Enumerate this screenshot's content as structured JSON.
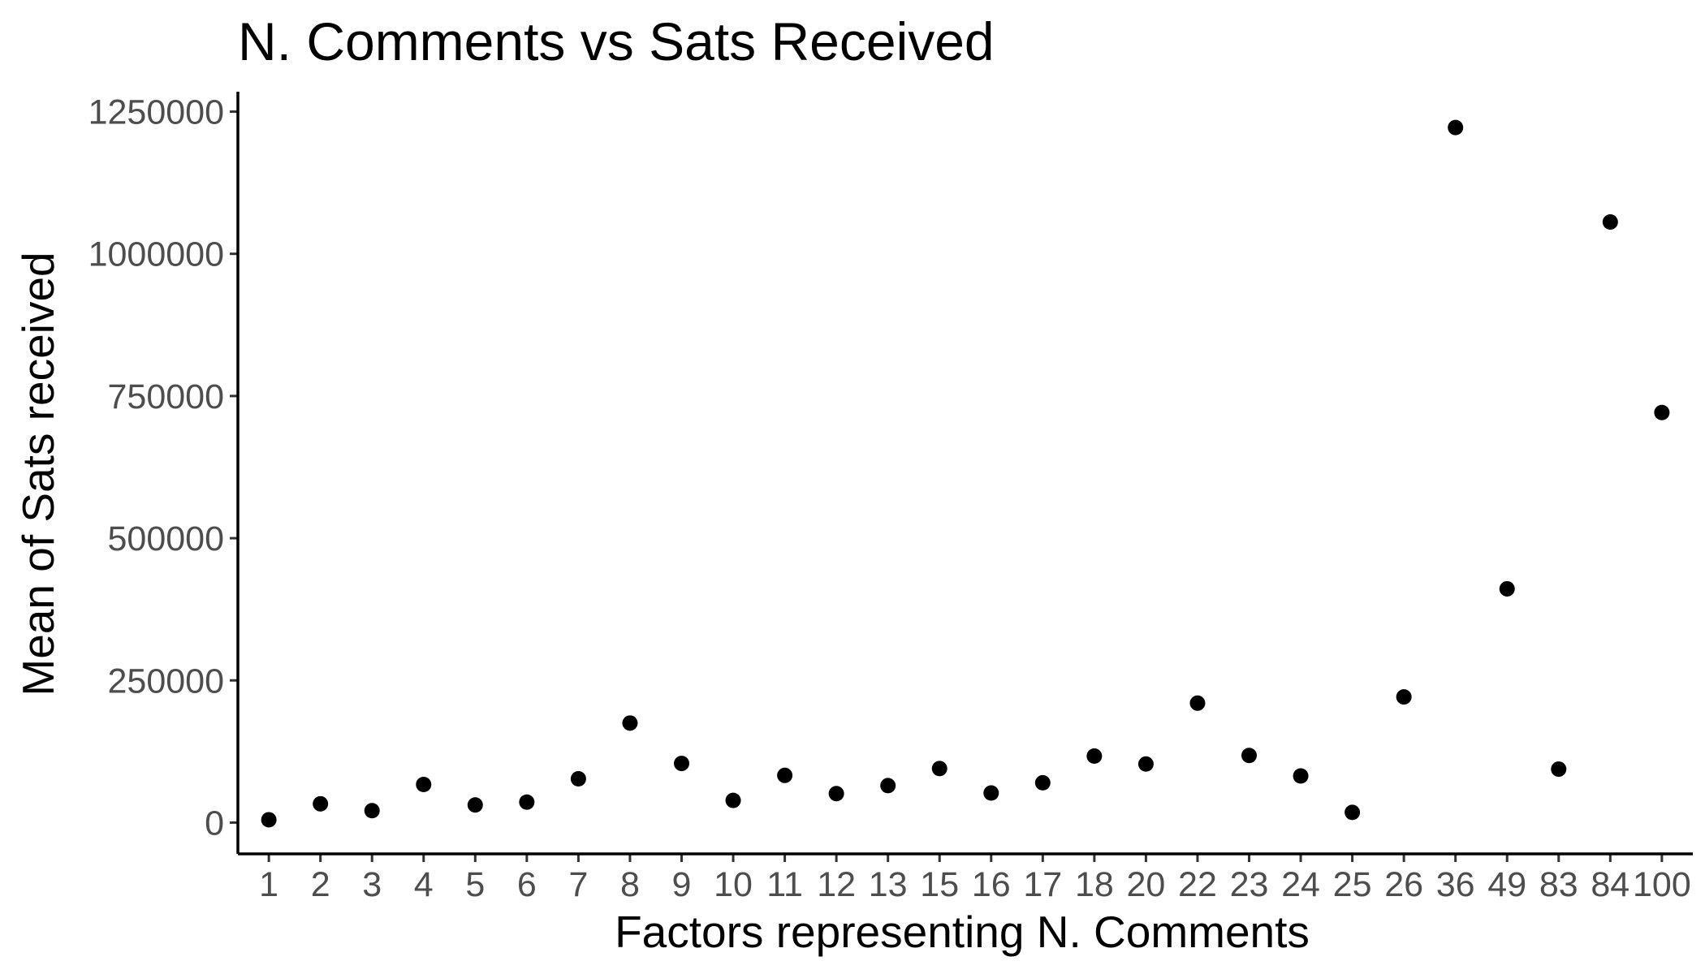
{
  "chart_data": {
    "type": "scatter",
    "title": "N. Comments vs Sats Received",
    "xlabel": "Factors representing N. Comments",
    "ylabel": "Mean of Sats received",
    "categories": [
      "1",
      "2",
      "3",
      "4",
      "5",
      "6",
      "7",
      "8",
      "9",
      "10",
      "11",
      "12",
      "13",
      "15",
      "16",
      "17",
      "18",
      "20",
      "22",
      "23",
      "24",
      "25",
      "26",
      "36",
      "49",
      "83",
      "84",
      "100"
    ],
    "series": [
      {
        "values": [
          5000,
          33000,
          21000,
          67000,
          31000,
          36000,
          77000,
          175000,
          104000,
          39000,
          83000,
          51000,
          65000,
          95000,
          52000,
          70000,
          117000,
          103000,
          210000,
          118000,
          82000,
          18000,
          221000,
          1222000,
          411000,
          94000,
          1056000,
          721000
        ]
      }
    ],
    "yticks": [
      0,
      250000,
      500000,
      750000,
      1000000,
      1250000
    ],
    "ytick_labels": [
      "0",
      "250000",
      "500000",
      "750000",
      "1000000",
      "1250000"
    ],
    "ylim": [
      -55000,
      1285000
    ],
    "grid": false,
    "legend": "none",
    "point_color": "#000000"
  }
}
